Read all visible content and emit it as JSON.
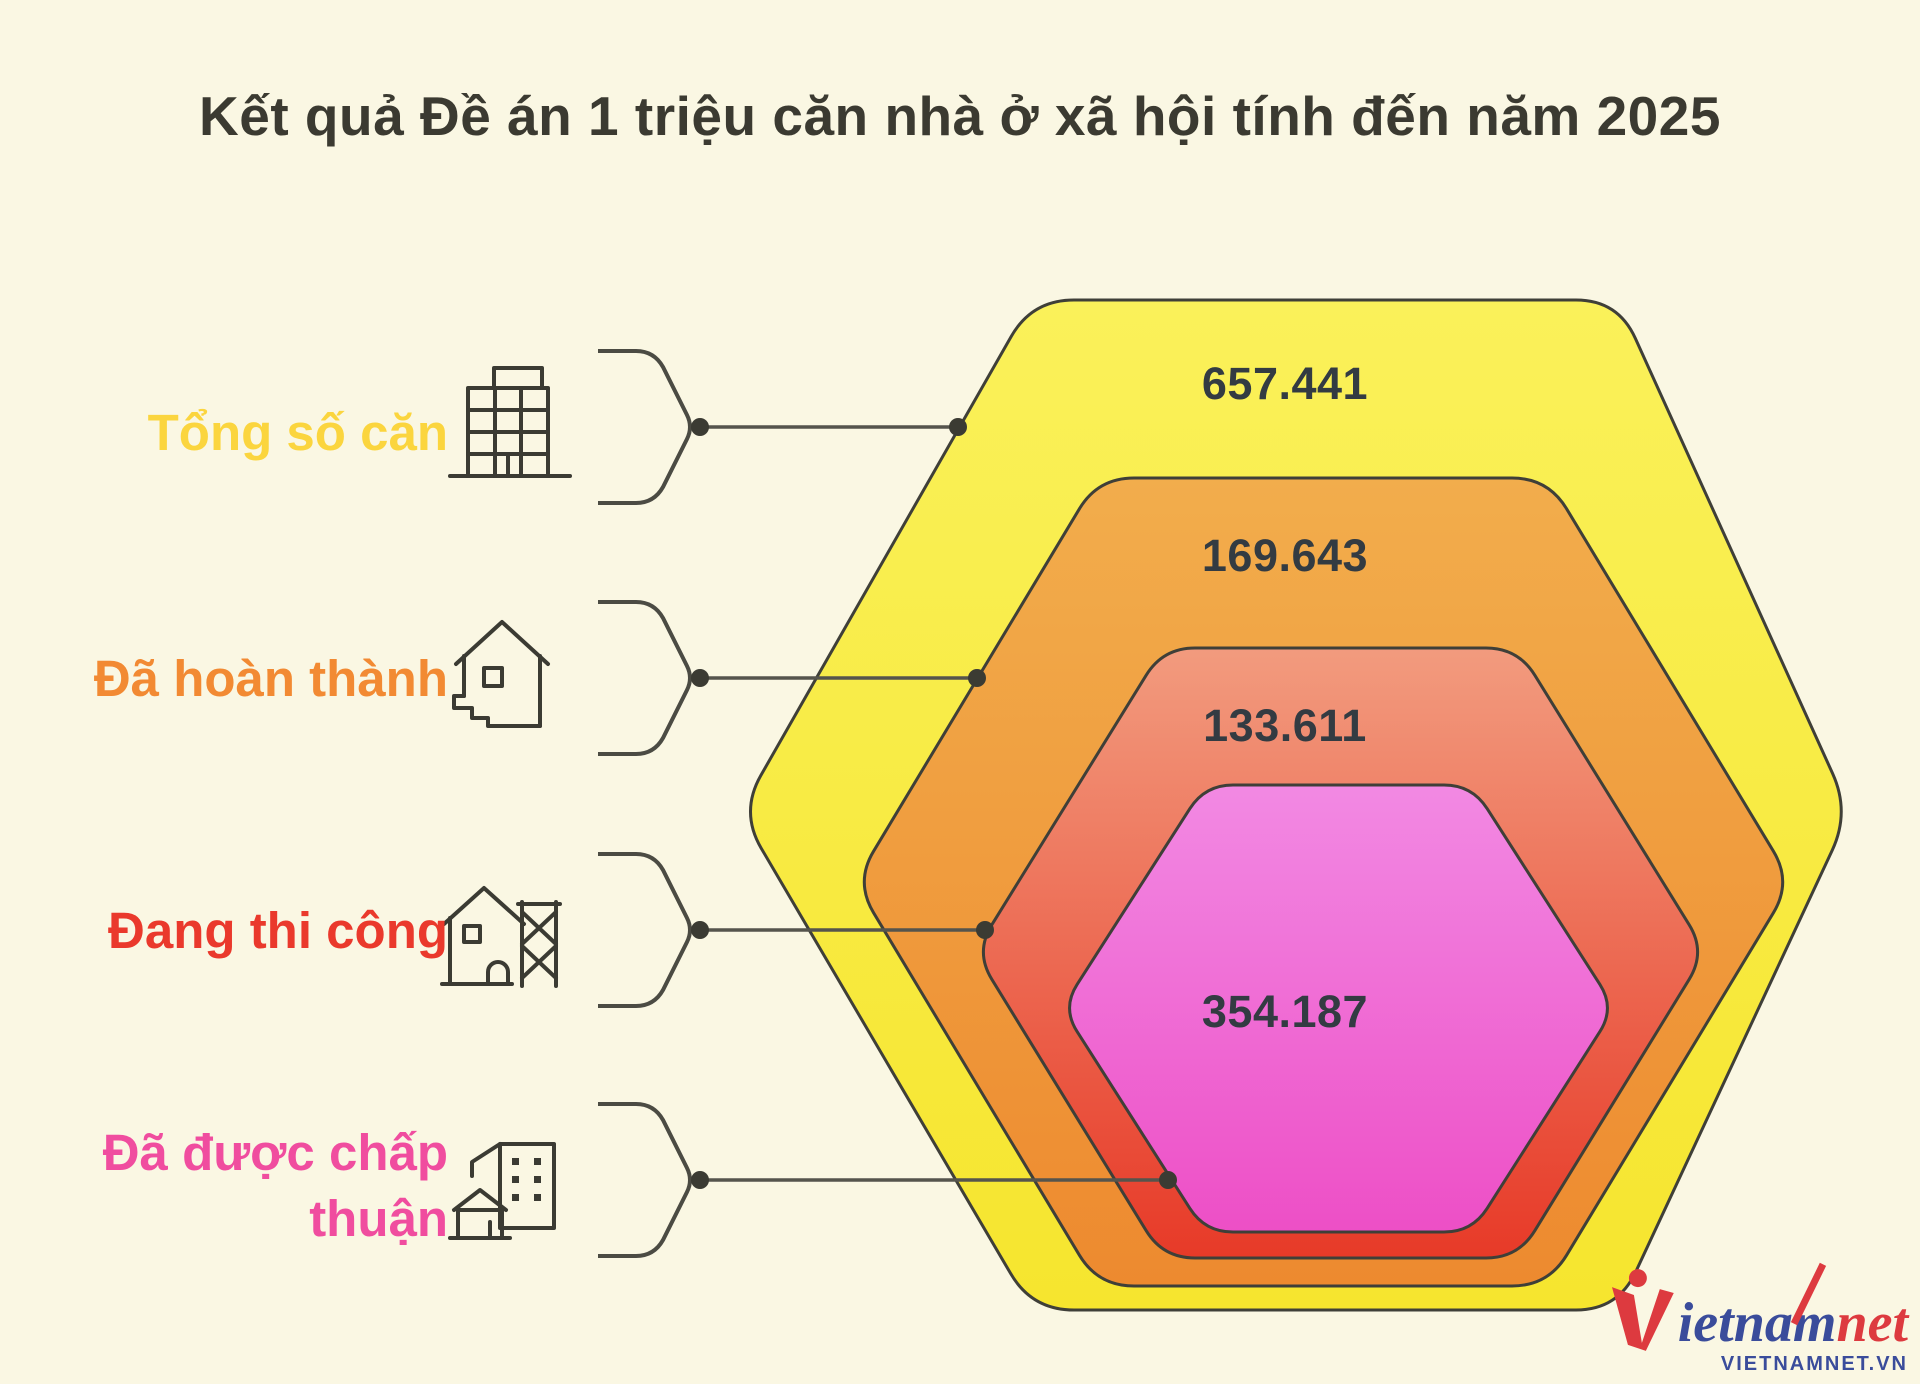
{
  "title": "Kết quả Đề án 1 triệu căn nhà ở xã hội tính đến năm 2025",
  "background_color": "#FAF7E3",
  "outline_color": "#3B3B33",
  "value_text_color": "#333B42",
  "chart_data": {
    "type": "nested-hexagon",
    "title": "Kết quả Đề án 1 triệu căn nhà ở xã hội tính đến năm 2025",
    "legend_position": "left",
    "nesting": "concentric rounded hexagons, outermost = largest stage",
    "series": [
      {
        "name": "Tổng số căn",
        "value": 657441,
        "value_label": "657.441",
        "label_color": "#FBD53E",
        "color_top": "#FAF15A",
        "color_bottom": "#F6E52E",
        "icon": "office-building-icon"
      },
      {
        "name": "Đã hoàn thành",
        "value": 169643,
        "value_label": "169.643",
        "label_color": "#F28A33",
        "color_top": "#F2AD4C",
        "color_bottom": "#ED8A2F",
        "icon": "completed-house-icon"
      },
      {
        "name": "Đang thi công",
        "value": 133611,
        "value_label": "133.611",
        "label_color": "#EA392C",
        "color_top": "#F29B7E",
        "color_bottom": "#E73A28",
        "icon": "construction-house-icon"
      },
      {
        "name": "Đã được chấp thuận",
        "value": 354187,
        "value_label": "354.187",
        "label_color": "#F04D9F",
        "color_top": "#F289E3",
        "color_bottom": "#ED4FC6",
        "icon": "approved-buildings-icon"
      }
    ]
  },
  "logo": {
    "brand_part_blue": "ietnam",
    "brand_part_red": "net",
    "domain": "VIETNAMNET.VN",
    "blue": "#3A4C9B",
    "red": "#DD3A3F"
  }
}
